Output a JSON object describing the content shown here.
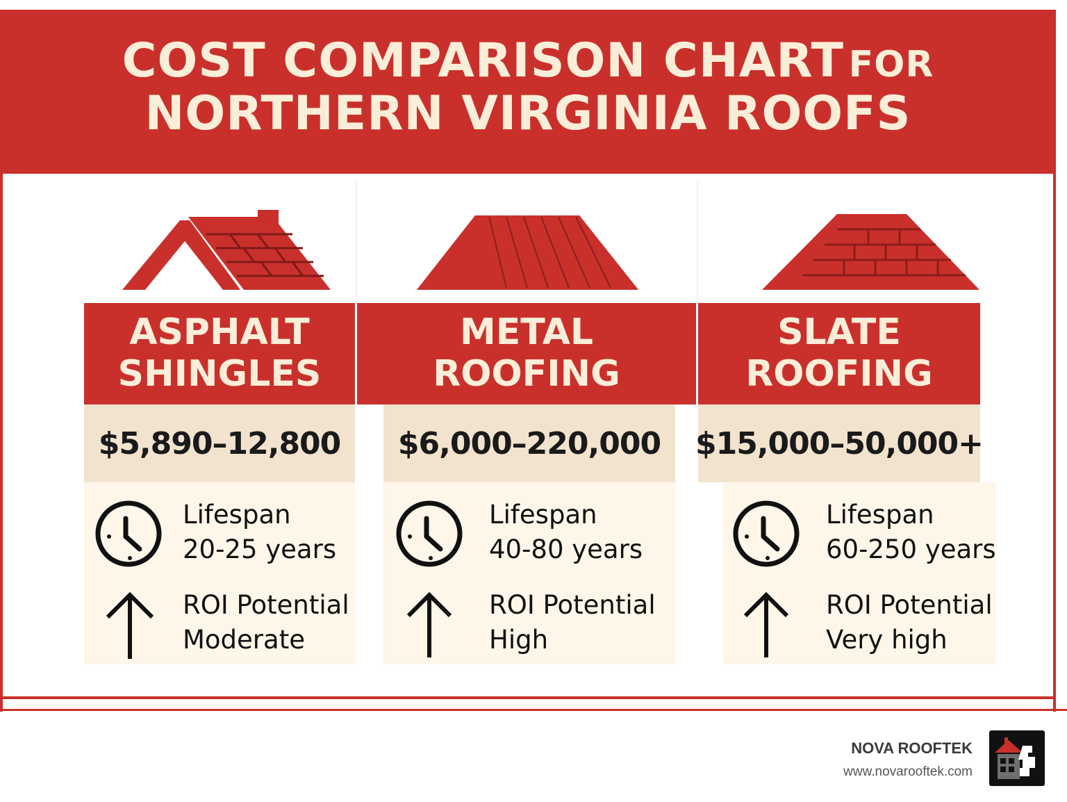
{
  "header": {
    "title_line1_main": "COST COMPARISON CHART",
    "title_line1_small": "FOR",
    "title_line2": "NORTHERN VIRGINIA ROOFS"
  },
  "colors": {
    "accent_red": "#c9302c",
    "cream_text": "#fbeed8",
    "price_bg": "#f2e3cf",
    "info_bg": "#fdf6e9"
  },
  "columns": [
    {
      "title": "ASPHALT\nSHINGLES",
      "price": "$5,890–12,800",
      "lifespan_label": "Lifespan",
      "lifespan_value": "20-25 years",
      "roi_label": "ROI Potential",
      "roi_value": "Moderate",
      "icons": [
        "clock-icon",
        "arrow-up-icon"
      ]
    },
    {
      "title": "METAL\nROOFING",
      "price": "$6,000–220,000",
      "lifespan_label": "Lifespan",
      "lifespan_value": "40-80 years",
      "roi_label": "ROI Potential",
      "roi_value": "High",
      "icons": [
        "clock-icon",
        "arrow-up-icon"
      ]
    },
    {
      "title": "SLATE\nROOFING",
      "price": "$15,000–50,000+",
      "lifespan_label": "Lifespan",
      "lifespan_value": "60-250 years",
      "roi_label": "ROI Potential",
      "roi_value": "Very high",
      "icons": [
        "clock-icon",
        "arrow-up-icon"
      ]
    }
  ],
  "footer": {
    "brand_name": "NOVA ROOFTEK",
    "brand_url": "www.novarooftek.com",
    "logo_icon": "house-logo-icon"
  }
}
